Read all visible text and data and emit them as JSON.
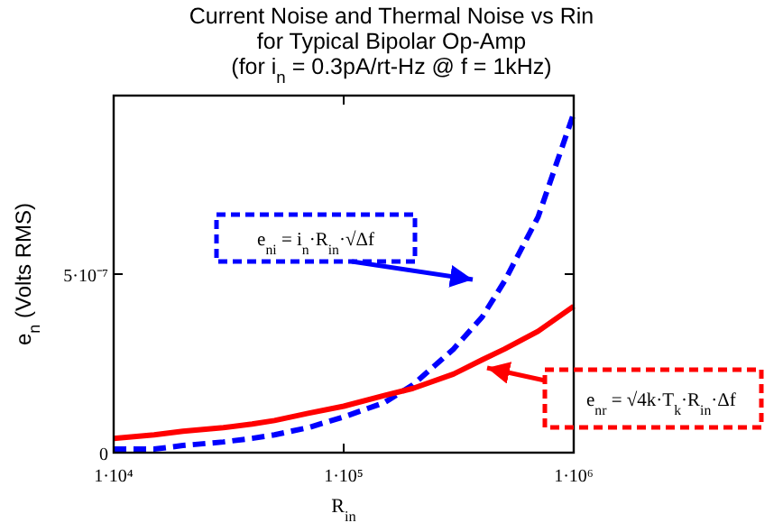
{
  "chart_data": {
    "type": "line",
    "title": "Current Noise and Thermal Noise vs Rin\nfor Typical Bipolar Op-Amp\n(for i$_{n}$ = 0.3pA/rt-Hz  @ f = 1kHz)",
    "xlabel": "R$_{in}$",
    "ylabel": "e$_{n}$  (Volts RMS)",
    "log": "x",
    "x": [
      10000,
      15000,
      20000,
      30000,
      40000,
      50000,
      70000,
      100000,
      150000,
      200000,
      300000,
      400000,
      500000,
      700000,
      1000000
    ],
    "series": [
      {
        "color": "#0000ff",
        "line_style": "dashed",
        "values": [
          1e-08,
          1e-08,
          2e-08,
          3e-08,
          4e-08,
          5e-08,
          7e-08,
          1e-07,
          1.4e-07,
          1.9e-07,
          2.9e-07,
          3.8e-07,
          4.8e-07,
          6.6e-07,
          9.5e-07
        ]
      },
      {
        "color": "#ff0000",
        "line_style": "solid",
        "values": [
          4e-08,
          5e-08,
          6e-08,
          7e-08,
          8e-08,
          9e-08,
          1.1e-07,
          1.3e-07,
          1.6e-07,
          1.8e-07,
          2.2e-07,
          2.6e-07,
          2.9e-07,
          3.4e-07,
          4.1e-07
        ]
      }
    ],
    "xlim": [
      10000,
      1000000
    ],
    "xticks": [
      {
        "value": 10000,
        "label": "1·10⁴"
      },
      {
        "value": 100000,
        "label": "1·10⁵"
      },
      {
        "value": 1000000,
        "label": "1·10⁶"
      }
    ],
    "ylim": [
      0,
      1e-06
    ],
    "yticks": [
      0,
      {
        "value": 5e-07,
        "label": "5·10⁻⁷"
      }
    ],
    "grid": false,
    "marker": "none",
    "annotations": [
      "e$_{ni}$ = i$_{n}$·R$_{in}$·√Δf",
      "e$_{nr}$ = √4k·T$_{k}$·R$_{in}$·Δf"
    ]
  }
}
